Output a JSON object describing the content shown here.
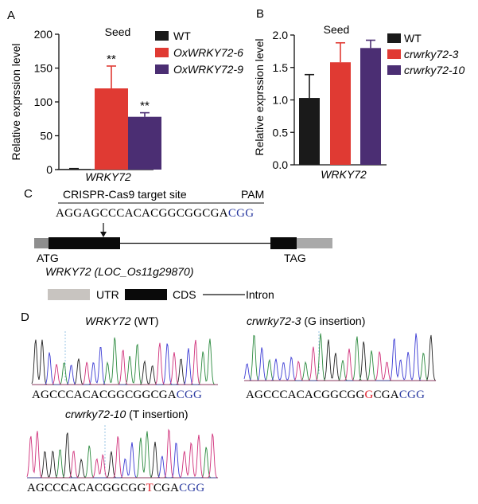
{
  "panels": {
    "A": {
      "letter": "A",
      "title": "Seed",
      "ylabel": "Relative exprssion level",
      "xlabel": "WRKY72",
      "yticks": [
        "0",
        "50",
        "100",
        "150",
        "200"
      ],
      "legend": [
        {
          "label": "WT",
          "color": "#1a1a1a",
          "italic": false
        },
        {
          "label": "OxWRKY72-6",
          "color": "#e03a33",
          "italic": true
        },
        {
          "label": "OxWRKY72-9",
          "color": "#4b2e73",
          "italic": true
        }
      ],
      "sig": [
        "**",
        "**"
      ]
    },
    "B": {
      "letter": "B",
      "title": "Seed",
      "ylabel": "Relative exprssion level",
      "xlabel": "WRKY72",
      "yticks": [
        "0.0",
        "0.5",
        "1.0",
        "1.5",
        "2.0"
      ],
      "legend": [
        {
          "label": "WT",
          "color": "#1a1a1a",
          "italic": false
        },
        {
          "label": "crwrky72-3",
          "color": "#e03a33",
          "italic": true
        },
        {
          "label": "crwrky72-10",
          "color": "#4b2e73",
          "italic": true
        }
      ]
    },
    "C": {
      "letter": "C",
      "target_label": "CRISPR-Cas9 target site",
      "pam_label": "PAM",
      "seq_main": "AGGAGCCCACACGGCGGCGA",
      "seq_pam": "CGG",
      "atg": "ATG",
      "tag": "TAG",
      "gene_label": "WRKY72 (LOC_Os11g29870)",
      "legend": {
        "utr": "UTR",
        "cds": "CDS",
        "intron": "Intron"
      }
    },
    "D": {
      "letter": "D",
      "wt_title_italic": "WRKY72",
      "wt_title_rest": " (WT)",
      "wt_seq_main": "AGCCCACACGGCGGCGA",
      "wt_seq_pam": "CGG",
      "m3_title_italic": "crwrky72-3",
      "m3_title_rest": " (G insertion)",
      "m3_seq_pre": "AGCCCACACGGCGG",
      "m3_seq_ins": "G",
      "m3_seq_post": "CGA",
      "m3_seq_pam": "CGG",
      "m10_title_italic": "crwrky72-10",
      "m10_title_rest": " (T insertion)",
      "m10_seq_pre": "AGCCCACACGGCGG",
      "m10_seq_ins": "T",
      "m10_seq_post": "CGA",
      "m10_seq_pam": "CGG"
    }
  },
  "chart_data": [
    {
      "type": "bar",
      "title": "Seed",
      "ylabel": "Relative exprssion level",
      "xlabel": "WRKY72",
      "ylim": [
        0,
        200
      ],
      "categories": [
        "WT",
        "OxWRKY72-6",
        "OxWRKY72-9"
      ],
      "values": [
        1,
        120,
        78
      ],
      "errors": [
        0.5,
        33,
        6
      ],
      "colors": [
        "#1a1a1a",
        "#e03a33",
        "#4b2e73"
      ]
    },
    {
      "type": "bar",
      "title": "Seed",
      "ylabel": "Relative exprssion level",
      "xlabel": "WRKY72",
      "ylim": [
        0,
        2.0
      ],
      "categories": [
        "WT",
        "crwrky72-3",
        "crwrky72-10"
      ],
      "values": [
        1.03,
        1.58,
        1.8
      ],
      "errors": [
        0.36,
        0.3,
        0.12
      ],
      "colors": [
        "#1a1a1a",
        "#e03a33",
        "#4b2e73"
      ]
    }
  ]
}
